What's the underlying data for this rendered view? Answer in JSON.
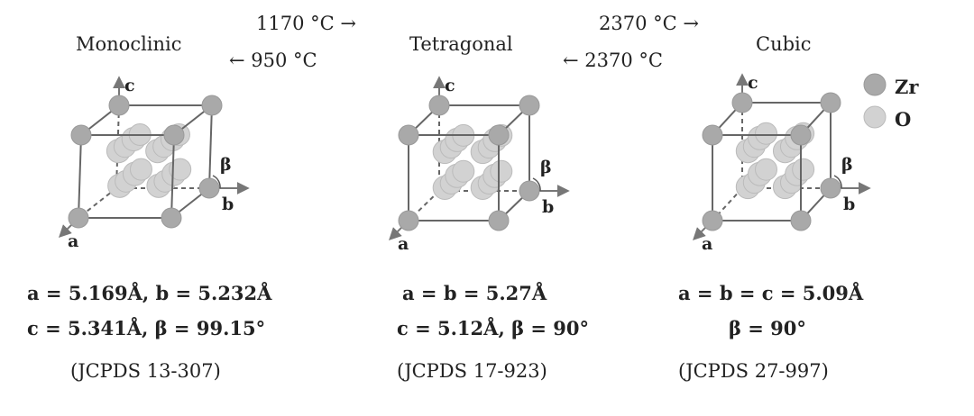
{
  "phases": [
    {
      "name": "Monoclinic",
      "params": [
        "a = 5.169Å, b = 5.232Å",
        "c = 5.341Å, β = 99.15°"
      ],
      "ref": "(JCPDS 13-307)"
    },
    {
      "name": "Tetragonal",
      "params": [
        "a = b = 5.27Å",
        "c = 5.12Å, β = 90°"
      ],
      "ref": "(JCPDS 17-923)"
    },
    {
      "name": "Cubic",
      "params": [
        "a = b = c = 5.09Å",
        "β = 90°"
      ],
      "ref": "(JCPDS 27-997)"
    }
  ],
  "transitions": [
    {
      "forward": "1170 °C →",
      "reverse": "← 950 °C"
    },
    {
      "forward": "2370 °C →",
      "reverse": "← 2370 °C"
    }
  ],
  "axes": {
    "a": "a",
    "b": "b",
    "c": "c",
    "beta": "β"
  },
  "legend": [
    {
      "label": "Zr",
      "color": "#a9a9a9"
    },
    {
      "label": "O",
      "color": "#d2d2d2"
    }
  ]
}
